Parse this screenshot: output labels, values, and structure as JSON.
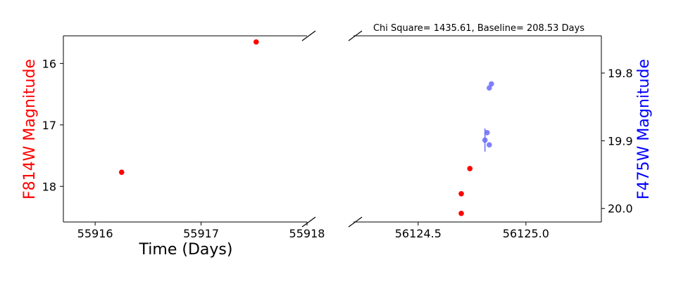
{
  "chart_data": {
    "type": "scatter",
    "title": "Chi Square= 1435.61, Baseline= 208.53 Days",
    "xlabel": "Time (Days)",
    "ylabel_left": "F814W Magnitude",
    "ylabel_right": "F475W Magnitude",
    "colors": {
      "left_axis": "#ff0000",
      "right_axis": "#0000ff",
      "f814w_points": "#ff0000",
      "f475w_points": "#6a6aff"
    },
    "grid": false,
    "broken_x_axis": true,
    "panels": [
      {
        "name": "left",
        "xlim": [
          55915.7,
          55918.0
        ],
        "ylim_inverted": [
          18.58,
          15.55
        ],
        "xticks": [
          {
            "value": 55916,
            "label": "55916"
          },
          {
            "value": 55917,
            "label": "55917"
          },
          {
            "value": 55918,
            "label": "55918"
          }
        ],
        "yticks": [
          {
            "value": 16,
            "label": "16"
          },
          {
            "value": 17,
            "label": "17"
          },
          {
            "value": 18,
            "label": "18"
          }
        ]
      },
      {
        "name": "right",
        "xlim": [
          56124.2,
          56125.35
        ],
        "ylim_inverted": [
          18.58,
          15.55
        ],
        "right_ylim_inverted": [
          20.02,
          19.745
        ],
        "xticks": [
          {
            "value": 56124.5,
            "label": "56124.5"
          },
          {
            "value": 56125.0,
            "label": "56125.0"
          }
        ],
        "right_yticks": [
          {
            "value": 19.8,
            "label": "19.8"
          },
          {
            "value": 19.9,
            "label": "19.9"
          },
          {
            "value": 20.0,
            "label": "20.0"
          }
        ]
      }
    ],
    "series": [
      {
        "name": "F814W",
        "axis": "left",
        "points": [
          {
            "x": 55916.25,
            "y": 17.77
          },
          {
            "x": 55917.52,
            "y": 15.65
          },
          {
            "x": 56124.7,
            "y": 18.12
          },
          {
            "x": 56124.7,
            "y": 18.44
          },
          {
            "x": 56124.74,
            "y": 17.71
          }
        ]
      },
      {
        "name": "F475W",
        "axis": "right",
        "points": [
          {
            "x": 56124.84,
            "y": 19.816,
            "yerr": 0
          },
          {
            "x": 56124.83,
            "y": 19.822,
            "yerr": 0
          },
          {
            "x": 56124.82,
            "y": 19.888,
            "yerr": 0
          },
          {
            "x": 56124.81,
            "y": 19.899,
            "yerr": 0.017
          },
          {
            "x": 56124.83,
            "y": 19.906,
            "yerr": 0
          }
        ]
      }
    ]
  }
}
